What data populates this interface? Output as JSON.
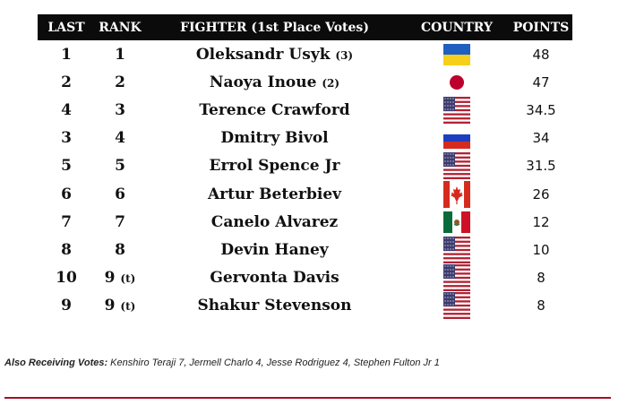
{
  "headers": {
    "last": "LAST",
    "rank": "RANK",
    "fighter": "FIGHTER (1st Place Votes)",
    "country": "COUNTRY",
    "points": "POINTS"
  },
  "rows": [
    {
      "last": "1",
      "rank": "1",
      "rank_note": "",
      "fighter": "Oleksandr Usyk",
      "votes": "(3)",
      "country_flag": "ukraine-flag",
      "points": "48"
    },
    {
      "last": "2",
      "rank": "2",
      "rank_note": "",
      "fighter": "Naoya Inoue",
      "votes": "(2)",
      "country_flag": "japan-flag",
      "points": "47"
    },
    {
      "last": "4",
      "rank": "3",
      "rank_note": "",
      "fighter": "Terence Crawford",
      "votes": "",
      "country_flag": "usa-flag",
      "points": "34.5"
    },
    {
      "last": "3",
      "rank": "4",
      "rank_note": "",
      "fighter": "Dmitry Bivol",
      "votes": "",
      "country_flag": "russia-flag",
      "points": "34"
    },
    {
      "last": "5",
      "rank": "5",
      "rank_note": "",
      "fighter": "Errol Spence Jr",
      "votes": "",
      "country_flag": "usa-flag",
      "points": "31.5"
    },
    {
      "last": "6",
      "rank": "6",
      "rank_note": "",
      "fighter": "Artur Beterbiev",
      "votes": "",
      "country_flag": "canada-flag",
      "points": "26"
    },
    {
      "last": "7",
      "rank": "7",
      "rank_note": "",
      "fighter": "Canelo Alvarez",
      "votes": "",
      "country_flag": "mexico-flag",
      "points": "12"
    },
    {
      "last": "8",
      "rank": "8",
      "rank_note": "",
      "fighter": "Devin Haney",
      "votes": "",
      "country_flag": "usa-flag",
      "points": "10"
    },
    {
      "last": "10",
      "rank": "9",
      "rank_note": "(t)",
      "fighter": "Gervonta Davis",
      "votes": "",
      "country_flag": "usa-flag",
      "points": "8"
    },
    {
      "last": "9",
      "rank": "9",
      "rank_note": "(t)",
      "fighter": "Shakur Stevenson",
      "votes": "",
      "country_flag": "usa-flag",
      "points": "8"
    }
  ],
  "note": {
    "label": "Also Receiving Votes:",
    "text": " Kenshiro Teraji 7, Jermell Charlo 4, Jesse Rodriguez 4, Stephen Fulton Jr 1"
  },
  "colors": {
    "header_bg": "#0b0b0b",
    "rule": "#a50f2a"
  }
}
